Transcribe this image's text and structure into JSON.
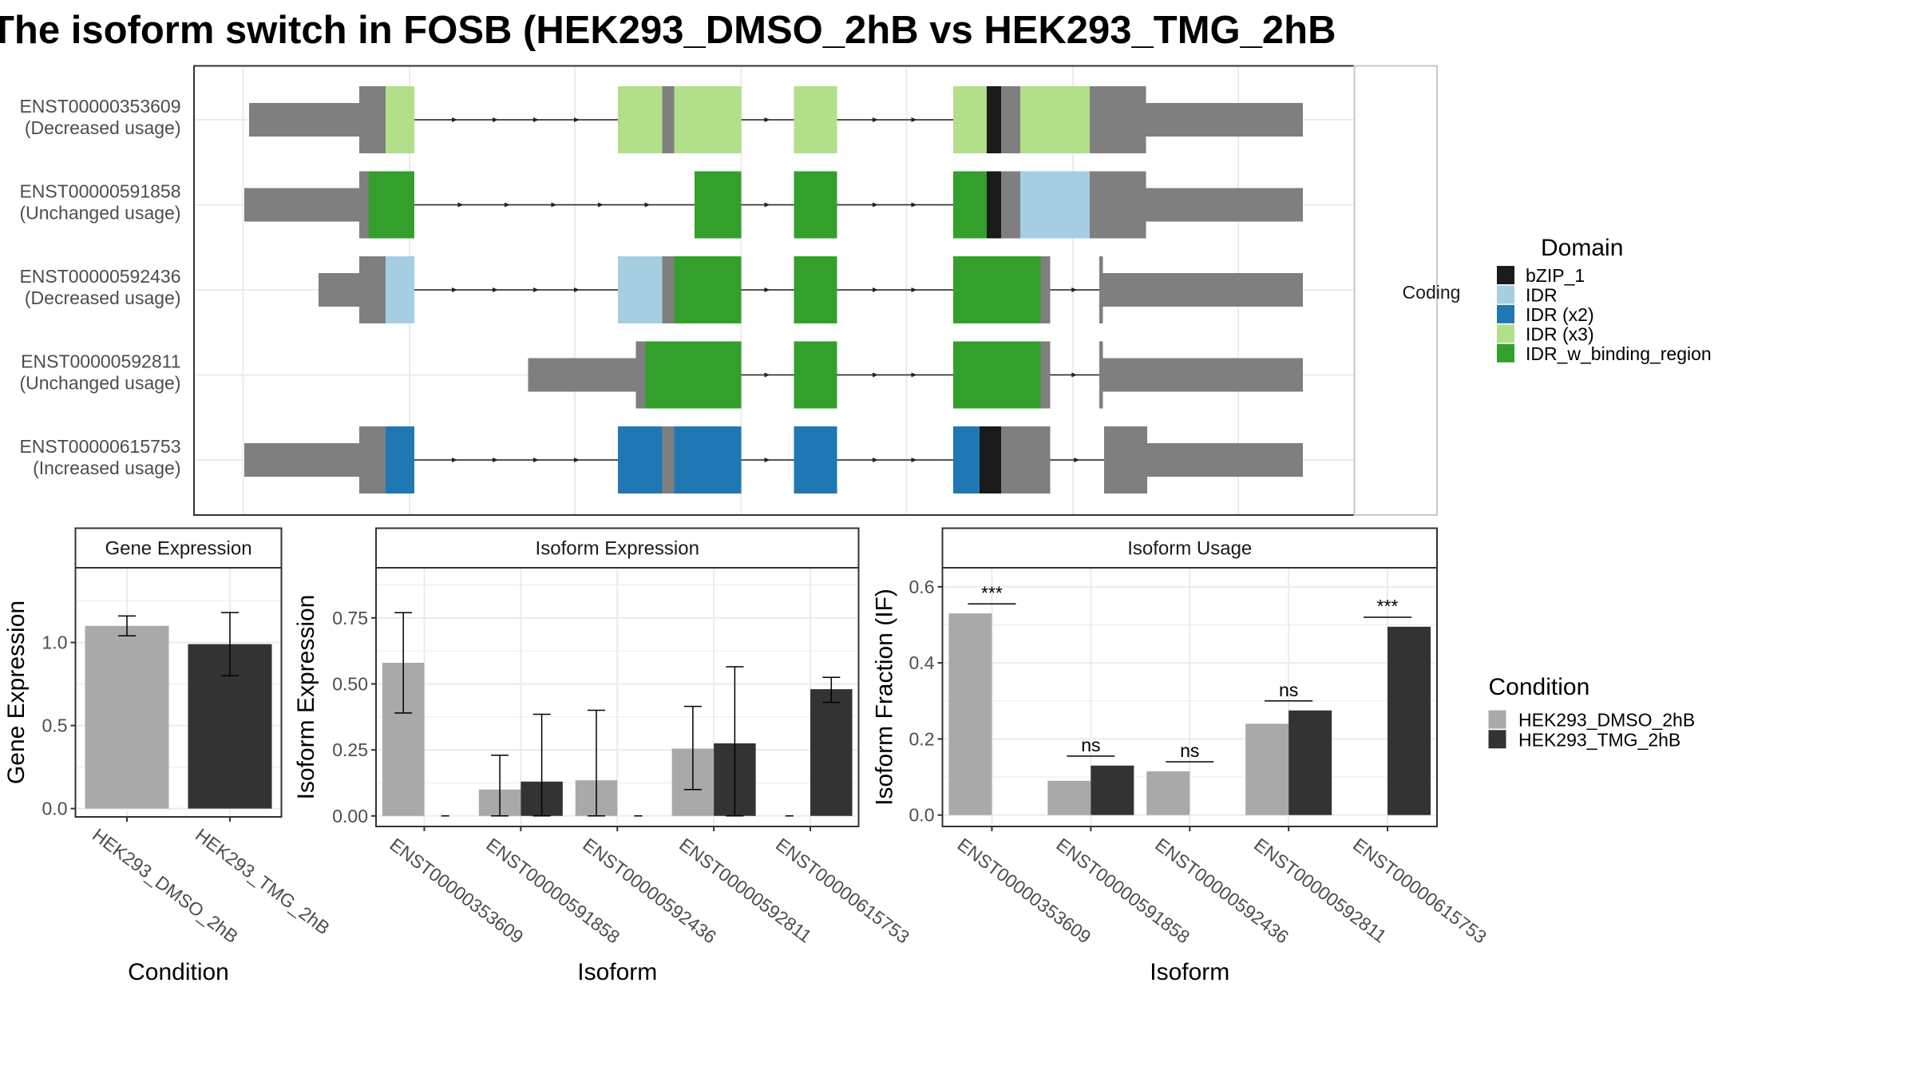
{
  "title": "The isoform switch in FOSB (HEK293_DMSO_2hB vs HEK293_TMG_2hB",
  "colors": {
    "bZIP_1": "#1a1a1a",
    "IDR": "#a6cee3",
    "IDR (x2)": "#1f78b4",
    "IDR (x3)": "#b2df8a",
    "IDR_w_binding_region": "#33a02c",
    "noncoding": "#7f7f7f",
    "HEK293_DMSO_2hB": "#a9a9a9",
    "HEK293_TMG_2hB": "#333333"
  },
  "structure": {
    "facet_label": "Coding",
    "legend_title": "Domain",
    "legend_items": [
      "bZIP_1",
      "IDR",
      "IDR (x2)",
      "IDR (x3)",
      "IDR_w_binding_region"
    ],
    "transcripts": [
      {
        "id": "ENST00000353609",
        "usage": "(Decreased usage)",
        "segments": [
          {
            "s": 208,
            "e": 300,
            "t": "utr"
          },
          {
            "s": 300,
            "e": 322,
            "t": "cds"
          },
          {
            "s": 322,
            "e": 346,
            "d": "IDR (x3)"
          },
          {
            "s": 516,
            "e": 553,
            "d": "IDR (x3)"
          },
          {
            "s": 553,
            "e": 563,
            "t": "cds"
          },
          {
            "s": 563,
            "e": 619,
            "d": "IDR (x3)"
          },
          {
            "s": 663,
            "e": 699,
            "d": "IDR (x3)"
          },
          {
            "s": 796,
            "e": 824,
            "d": "IDR (x3)"
          },
          {
            "s": 824,
            "e": 836,
            "d": "bZIP_1"
          },
          {
            "s": 836,
            "e": 852,
            "t": "cds"
          },
          {
            "s": 852,
            "e": 910,
            "d": "IDR (x3)"
          },
          {
            "s": 910,
            "e": 957,
            "t": "cds"
          },
          {
            "s": 957,
            "e": 1088,
            "t": "utr"
          }
        ]
      },
      {
        "id": "ENST00000591858",
        "usage": "(Unchanged usage)",
        "segments": [
          {
            "s": 204,
            "e": 300,
            "t": "utr"
          },
          {
            "s": 300,
            "e": 308,
            "t": "cds"
          },
          {
            "s": 308,
            "e": 346,
            "d": "IDR_w_binding_region"
          },
          {
            "s": 580,
            "e": 619,
            "d": "IDR_w_binding_region"
          },
          {
            "s": 663,
            "e": 699,
            "d": "IDR_w_binding_region"
          },
          {
            "s": 796,
            "e": 824,
            "d": "IDR_w_binding_region"
          },
          {
            "s": 824,
            "e": 836,
            "d": "bZIP_1"
          },
          {
            "s": 836,
            "e": 852,
            "t": "cds"
          },
          {
            "s": 852,
            "e": 910,
            "d": "IDR"
          },
          {
            "s": 910,
            "e": 957,
            "t": "cds"
          },
          {
            "s": 957,
            "e": 1088,
            "t": "utr"
          }
        ]
      },
      {
        "id": "ENST00000592436",
        "usage": "(Decreased usage)",
        "segments": [
          {
            "s": 266,
            "e": 300,
            "t": "utr"
          },
          {
            "s": 300,
            "e": 322,
            "t": "cds"
          },
          {
            "s": 322,
            "e": 346,
            "d": "IDR"
          },
          {
            "s": 516,
            "e": 553,
            "d": "IDR"
          },
          {
            "s": 553,
            "e": 563,
            "t": "cds"
          },
          {
            "s": 563,
            "e": 619,
            "d": "IDR_w_binding_region"
          },
          {
            "s": 663,
            "e": 699,
            "d": "IDR_w_binding_region"
          },
          {
            "s": 796,
            "e": 869,
            "d": "IDR_w_binding_region"
          },
          {
            "s": 869,
            "e": 877,
            "t": "cds"
          },
          {
            "s": 918,
            "e": 921,
            "t": "cds"
          },
          {
            "s": 921,
            "e": 1088,
            "t": "utr"
          }
        ]
      },
      {
        "id": "ENST00000592811",
        "usage": "(Unchanged usage)",
        "segments": [
          {
            "s": 441,
            "e": 531,
            "t": "utr"
          },
          {
            "s": 531,
            "e": 539,
            "t": "cds"
          },
          {
            "s": 539,
            "e": 619,
            "d": "IDR_w_binding_region"
          },
          {
            "s": 663,
            "e": 699,
            "d": "IDR_w_binding_region"
          },
          {
            "s": 796,
            "e": 869,
            "d": "IDR_w_binding_region"
          },
          {
            "s": 869,
            "e": 877,
            "t": "cds"
          },
          {
            "s": 918,
            "e": 921,
            "t": "cds"
          },
          {
            "s": 921,
            "e": 1088,
            "t": "utr"
          }
        ]
      },
      {
        "id": "ENST00000615753",
        "usage": "(Increased usage)",
        "segments": [
          {
            "s": 204,
            "e": 300,
            "t": "utr"
          },
          {
            "s": 300,
            "e": 322,
            "t": "cds"
          },
          {
            "s": 322,
            "e": 346,
            "d": "IDR (x2)"
          },
          {
            "s": 516,
            "e": 553,
            "d": "IDR (x2)"
          },
          {
            "s": 553,
            "e": 563,
            "t": "cds"
          },
          {
            "s": 563,
            "e": 619,
            "d": "IDR (x2)"
          },
          {
            "s": 663,
            "e": 699,
            "d": "IDR (x2)"
          },
          {
            "s": 796,
            "e": 818,
            "d": "IDR (x2)"
          },
          {
            "s": 818,
            "e": 836,
            "d": "bZIP_1"
          },
          {
            "s": 836,
            "e": 877,
            "t": "cds"
          },
          {
            "s": 922,
            "e": 958,
            "t": "cds"
          },
          {
            "s": 958,
            "e": 1088,
            "t": "utr"
          }
        ]
      }
    ]
  },
  "chart_data": [
    {
      "type": "bar",
      "title": "Gene Expression",
      "xlabel": "Condition",
      "ylabel": "Gene Expression",
      "categories": [
        "HEK293_DMSO_2hB",
        "HEK293_TMG_2hB"
      ],
      "values": [
        1.1,
        0.99
      ],
      "errors": [
        [
          1.04,
          1.16
        ],
        [
          0.8,
          1.18
        ]
      ],
      "ylim": [
        -0.05,
        1.45
      ],
      "yticks": [
        0.0,
        0.5,
        1.0
      ]
    },
    {
      "type": "bar",
      "title": "Isoform Expression",
      "xlabel": "Isoform",
      "ylabel": "Isoform Expression",
      "categories": [
        "ENST00000353609",
        "ENST00000591858",
        "ENST00000592436",
        "ENST00000592811",
        "ENST00000615753"
      ],
      "series": [
        {
          "name": "HEK293_DMSO_2hB",
          "values": [
            0.58,
            0.1,
            0.135,
            0.255,
            0.0
          ],
          "errors": [
            [
              0.39,
              0.77
            ],
            [
              0.0,
              0.23
            ],
            [
              0.0,
              0.4
            ],
            [
              0.1,
              0.415
            ],
            [
              0.0,
              0.0
            ]
          ]
        },
        {
          "name": "HEK293_TMG_2hB",
          "values": [
            0.0,
            0.13,
            0.0,
            0.275,
            0.48
          ],
          "errors": [
            [
              0.0,
              0.0
            ],
            [
              0.0,
              0.385
            ],
            [
              0.0,
              0.0
            ],
            [
              0.0,
              0.565
            ],
            [
              0.43,
              0.525
            ]
          ]
        }
      ],
      "ylim": [
        -0.04,
        0.94
      ],
      "yticks": [
        0.0,
        0.25,
        0.5,
        0.75
      ]
    },
    {
      "type": "bar",
      "title": "Isoform Usage",
      "xlabel": "Isoform",
      "ylabel": "Isoform Fraction (IF)",
      "categories": [
        "ENST00000353609",
        "ENST00000591858",
        "ENST00000592436",
        "ENST00000592811",
        "ENST00000615753"
      ],
      "series": [
        {
          "name": "HEK293_DMSO_2hB",
          "values": [
            0.53,
            0.09,
            0.115,
            0.24,
            0.0
          ]
        },
        {
          "name": "HEK293_TMG_2hB",
          "values": [
            0.0,
            0.13,
            0.0,
            0.275,
            0.495
          ]
        }
      ],
      "significance": [
        "***",
        "ns",
        "ns",
        "ns",
        "***"
      ],
      "ylim": [
        -0.03,
        0.65
      ],
      "yticks": [
        0.0,
        0.2,
        0.4,
        0.6
      ],
      "legend": {
        "title": "Condition",
        "items": [
          "HEK293_DMSO_2hB",
          "HEK293_TMG_2hB"
        ],
        "position": "right"
      }
    }
  ]
}
